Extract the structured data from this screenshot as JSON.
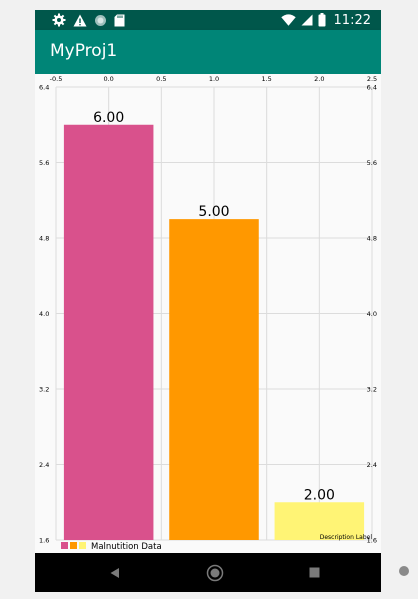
{
  "status_bar": {
    "time": "11:22",
    "left_icons": [
      "settings-icon",
      "warning-icon",
      "circle-icon",
      "sd-card-icon"
    ],
    "right_icons": [
      "wifi-icon",
      "signal-icon",
      "battery-icon"
    ]
  },
  "app_bar": {
    "title": "MyProj1"
  },
  "chart_data": {
    "type": "bar",
    "x": [
      0,
      1,
      2
    ],
    "values": [
      6.0,
      5.0,
      2.0
    ],
    "value_labels": [
      "6.00",
      "5.00",
      "2.00"
    ],
    "colors": [
      "#d9518c",
      "#ff9800",
      "#fff475"
    ],
    "xlim": [
      -0.5,
      2.5
    ],
    "ylim": [
      1.6,
      6.4
    ],
    "x_ticks": [
      "-0.5",
      "0.0",
      "0.5",
      "1.0",
      "1.5",
      "2.0",
      "2.5"
    ],
    "x_tick_values": [
      -0.5,
      0,
      0.5,
      1.0,
      1.5,
      2.0,
      2.5
    ],
    "y_ticks": [
      "1.6",
      "2.4",
      "3.2",
      "4.0",
      "4.8",
      "5.6",
      "6.4"
    ],
    "y_tick_values": [
      1.6,
      2.4,
      3.2,
      4.0,
      4.8,
      5.6,
      6.4
    ],
    "x_axis_position": "top",
    "grid": true,
    "legend": {
      "label": "Malnutition Data",
      "position": "bottom-left",
      "colors": [
        "#d9518c",
        "#ff9800",
        "#fff475"
      ]
    },
    "description": "Description Label",
    "title": "",
    "xlabel": "",
    "ylabel": ""
  },
  "navigation": {
    "buttons": [
      "back-icon",
      "home-icon",
      "recents-icon"
    ]
  }
}
